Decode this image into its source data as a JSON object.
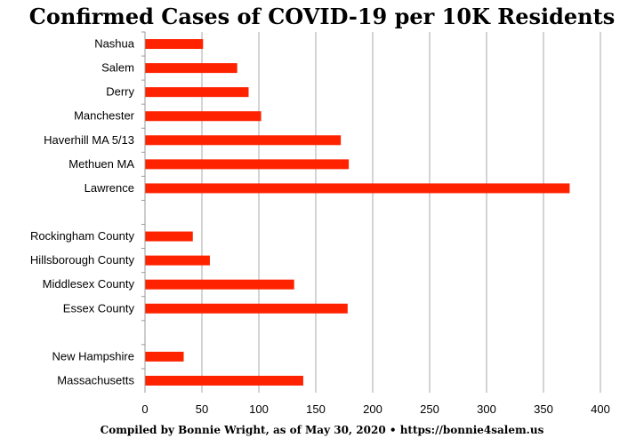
{
  "chart_data": {
    "type": "bar",
    "orientation": "horizontal",
    "title": "Confirmed Cases of COVID-19 per 10K Residents",
    "categories": [
      "Nashua",
      "Salem",
      "Derry",
      "Manchester",
      "Haverhill  MA 5/13",
      "Methuen MA",
      "Lawrence",
      "",
      "Rockingham County",
      "Hillsborough County",
      "Middlesex County",
      "Essex County",
      "",
      "New Hampshire",
      "Massachusetts"
    ],
    "values": [
      51,
      81,
      91,
      102,
      172,
      179,
      373,
      null,
      42,
      57,
      131,
      178,
      null,
      34,
      139
    ],
    "xlim": [
      0,
      400
    ],
    "xticks": [
      0,
      50,
      100,
      150,
      200,
      250,
      300,
      350,
      400
    ],
    "grid": "vertical",
    "bar_color": "#ff2200"
  },
  "footer": "Compiled by Bonnie Wright, as of May 30, 2020 • https://bonnie4salem.us"
}
